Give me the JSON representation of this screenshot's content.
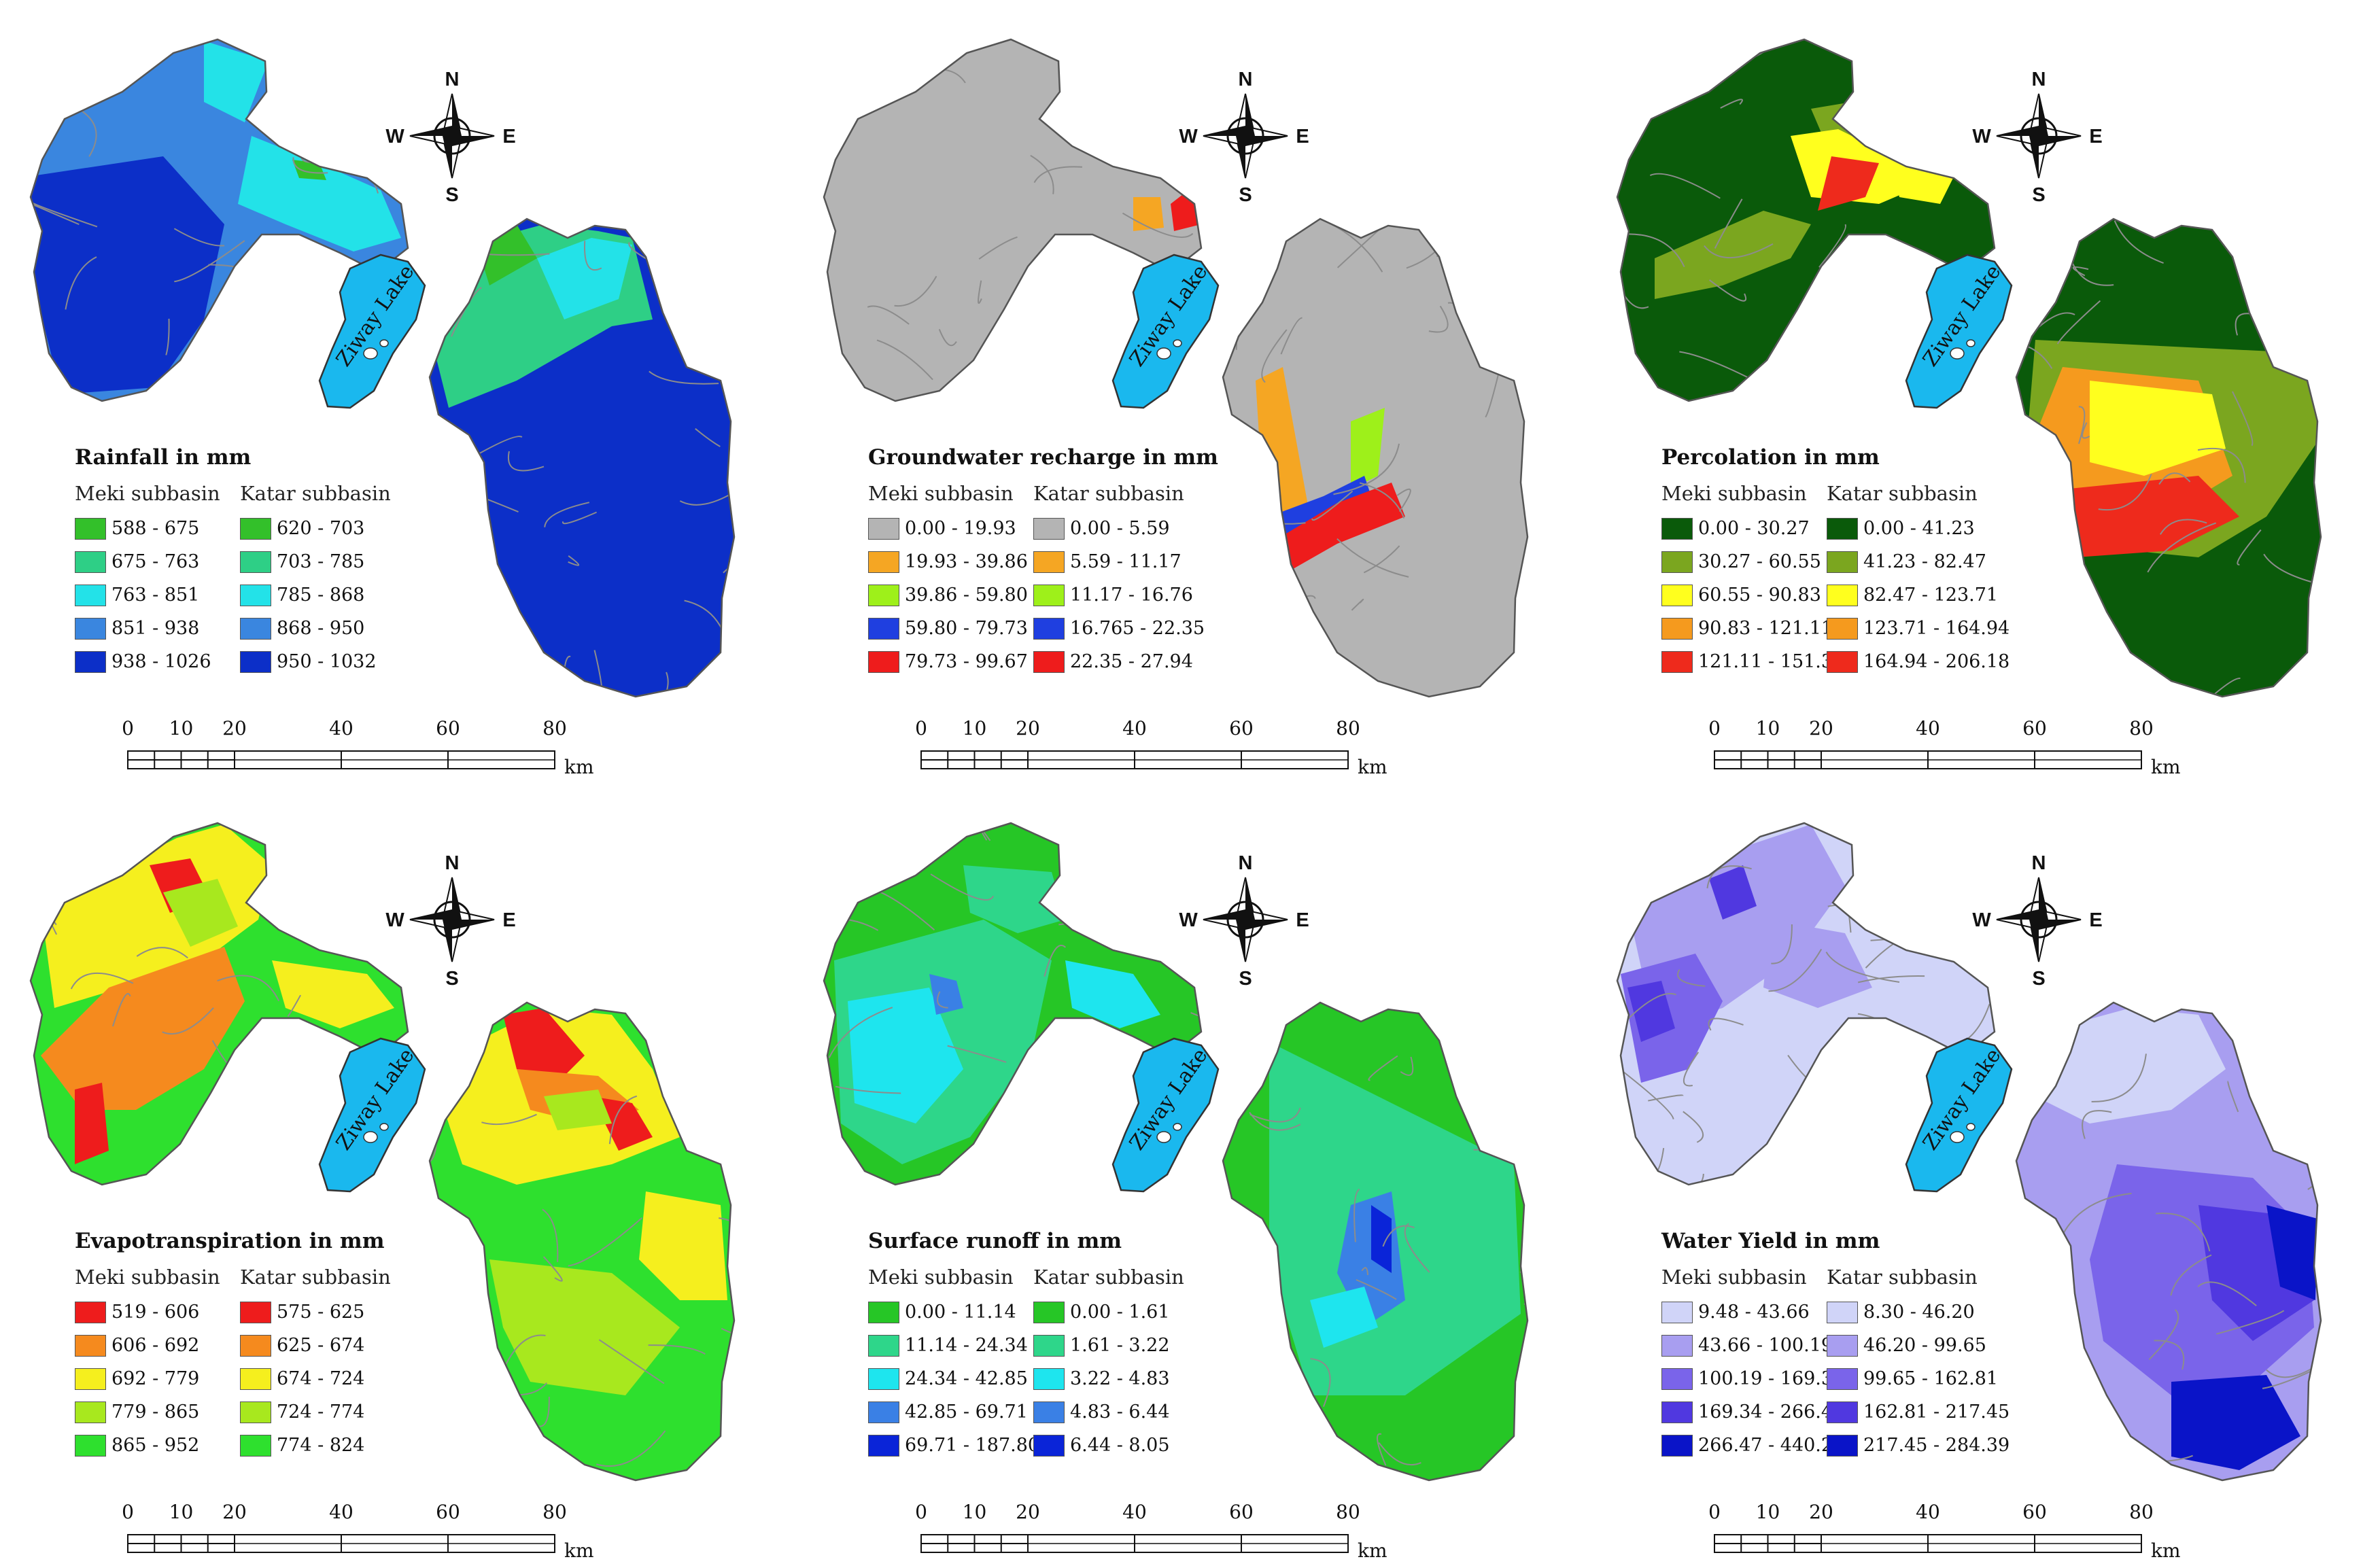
{
  "lake_label": "Ziway Lake",
  "compass": {
    "north": "N",
    "south": "S",
    "east": "E",
    "west": "W"
  },
  "scale_bar": {
    "ticks": [
      "0",
      "10",
      "20",
      "40",
      "60",
      "80"
    ],
    "unit": "km"
  },
  "legend_columns": {
    "meki": "Meki subbasin",
    "katar": "Katar subbasin"
  },
  "panels": [
    {
      "title": "Rainfall in mm",
      "meki": [
        {
          "label": "588 - 675",
          "color": "#33c02a"
        },
        {
          "label": "675 - 763",
          "color": "#2ecf86"
        },
        {
          "label": "763 - 851",
          "color": "#23e2e8"
        },
        {
          "label": "851 - 938",
          "color": "#3a86df"
        },
        {
          "label": "938 - 1026",
          "color": "#0c2fc8"
        }
      ],
      "katar": [
        {
          "label": "620 - 703",
          "color": "#33c02a"
        },
        {
          "label": "703 - 785",
          "color": "#2ecf86"
        },
        {
          "label": "785 - 868",
          "color": "#23e2e8"
        },
        {
          "label": "868 - 950",
          "color": "#3a86df"
        },
        {
          "label": "950 - 1032",
          "color": "#0c2fc8"
        }
      ]
    },
    {
      "title": "Groundwater recharge in mm",
      "meki": [
        {
          "label": "0.00 - 19.93",
          "color": "#b4b4b4"
        },
        {
          "label": "19.93 - 39.86",
          "color": "#f5a623"
        },
        {
          "label": "39.86 - 59.80",
          "color": "#9ef01a"
        },
        {
          "label": "59.80 - 79.73",
          "color": "#1f3fe0"
        },
        {
          "label": "79.73 - 99.67",
          "color": "#ee1c1c"
        }
      ],
      "katar": [
        {
          "label": "0.00 - 5.59",
          "color": "#b4b4b4"
        },
        {
          "label": "5.59 - 11.17",
          "color": "#f5a623"
        },
        {
          "label": "11.17 - 16.76",
          "color": "#9ef01a"
        },
        {
          "label": "16.765 - 22.35",
          "color": "#1f3fe0"
        },
        {
          "label": "22.35 - 27.94",
          "color": "#ee1c1c"
        }
      ]
    },
    {
      "title": "Percolation in mm",
      "meki": [
        {
          "label": "0.00 - 30.27",
          "color": "#0a5a0a"
        },
        {
          "label": "30.27 - 60.55",
          "color": "#7ba61f"
        },
        {
          "label": "60.55 - 90.83",
          "color": "#ffff1e"
        },
        {
          "label": "90.83 - 121.11",
          "color": "#f59a1e"
        },
        {
          "label": "121.11 - 151.38",
          "color": "#ee2a1c"
        }
      ],
      "katar": [
        {
          "label": "0.00 - 41.23",
          "color": "#0a5a0a"
        },
        {
          "label": "41.23 - 82.47",
          "color": "#7ba61f"
        },
        {
          "label": "82.47 - 123.71",
          "color": "#ffff1e"
        },
        {
          "label": "123.71 - 164.94",
          "color": "#f59a1e"
        },
        {
          "label": "164.94 - 206.18",
          "color": "#ee2a1c"
        }
      ]
    },
    {
      "title": "Evapotranspiration in mm",
      "meki": [
        {
          "label": "519 - 606",
          "color": "#ee1c1c"
        },
        {
          "label": "606 - 692",
          "color": "#f58a1e"
        },
        {
          "label": "692 - 779",
          "color": "#f5ef1e"
        },
        {
          "label": "779 - 865",
          "color": "#a8e81e"
        },
        {
          "label": "865 - 952",
          "color": "#2ee02e"
        }
      ],
      "katar": [
        {
          "label": "575 - 625",
          "color": "#ee1c1c"
        },
        {
          "label": "625 - 674",
          "color": "#f58a1e"
        },
        {
          "label": "674 - 724",
          "color": "#f5ef1e"
        },
        {
          "label": "724 - 774",
          "color": "#a8e81e"
        },
        {
          "label": "774 - 824",
          "color": "#2ee02e"
        }
      ]
    },
    {
      "title": "Surface runoff in mm",
      "meki": [
        {
          "label": "0.00 - 11.14",
          "color": "#26c626"
        },
        {
          "label": "11.14 - 24.34",
          "color": "#2ed68a"
        },
        {
          "label": "24.34 - 42.85",
          "color": "#1ee5ee"
        },
        {
          "label": "42.85 - 69.71",
          "color": "#3a80e5"
        },
        {
          "label": "69.71 - 187.80",
          "color": "#0a24d8"
        }
      ],
      "katar": [
        {
          "label": "0.00 - 1.61",
          "color": "#26c626"
        },
        {
          "label": "1.61 - 3.22",
          "color": "#2ed68a"
        },
        {
          "label": "3.22 - 4.83",
          "color": "#1ee5ee"
        },
        {
          "label": "4.83 - 6.44",
          "color": "#3a80e5"
        },
        {
          "label": "6.44 - 8.05",
          "color": "#0a24d8"
        }
      ]
    },
    {
      "title": "Water Yield in mm",
      "meki": [
        {
          "label": "9.48 - 43.66",
          "color": "#d0d4f8"
        },
        {
          "label": "43.66 - 100.19",
          "color": "#a89ef0"
        },
        {
          "label": "100.19 - 169.34",
          "color": "#7a64ea"
        },
        {
          "label": "169.34 - 266.47",
          "color": "#5038e0"
        },
        {
          "label": "266.47 - 440.27",
          "color": "#0a14c8"
        }
      ],
      "katar": [
        {
          "label": "8.30 - 46.20",
          "color": "#d0d4f8"
        },
        {
          "label": "46.20 - 99.65",
          "color": "#a89ef0"
        },
        {
          "label": "99.65 - 162.81",
          "color": "#7a64ea"
        },
        {
          "label": "162.81 - 217.45",
          "color": "#5038e0"
        },
        {
          "label": "217.45 - 284.39",
          "color": "#0a14c8"
        }
      ]
    }
  ]
}
